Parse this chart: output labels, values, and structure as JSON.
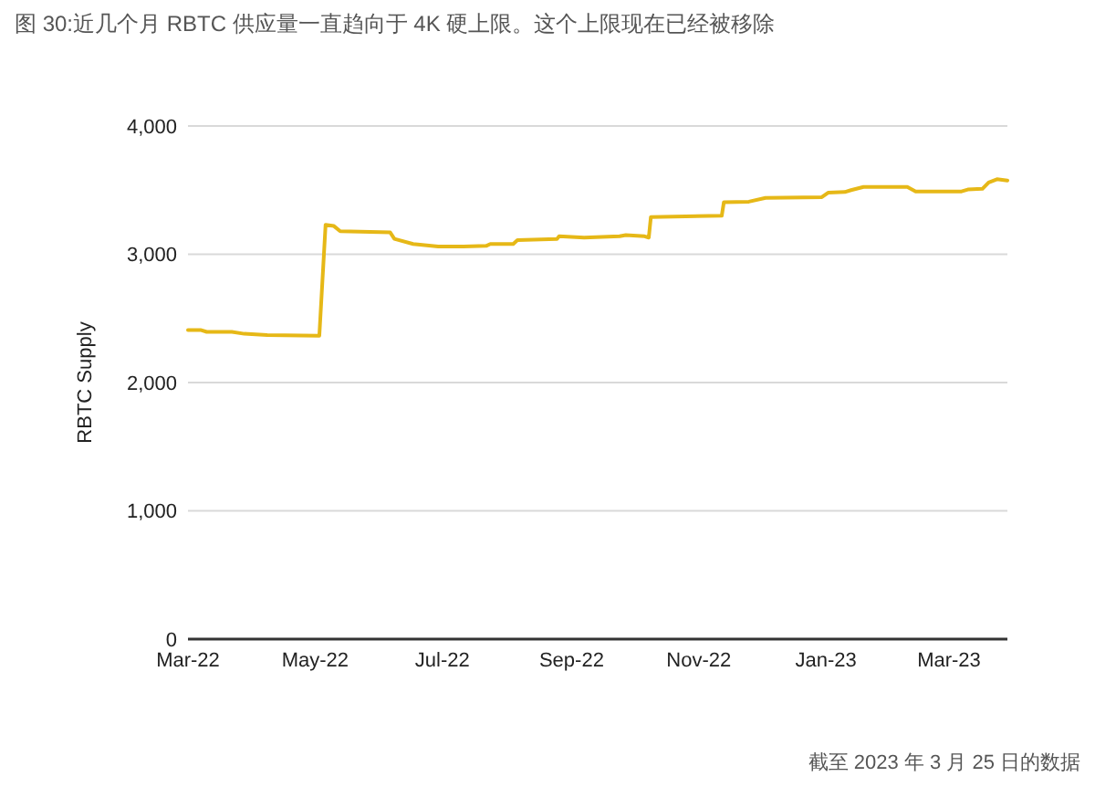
{
  "chart_data": {
    "type": "line",
    "title": "图 30:近几个月 RBTC 供应量一直趋向于 4K 硬上限。这个上限现在已经被移除",
    "ylabel": "RBTC Supply",
    "annotations": [
      "截至 2023 年 3 月 25 日的数据"
    ],
    "x": [
      "2022-03-01",
      "2022-03-07",
      "2022-03-10",
      "2022-03-22",
      "2022-03-28",
      "2022-04-08",
      "2022-05-03",
      "2022-05-06",
      "2022-05-10",
      "2022-05-13",
      "2022-06-06",
      "2022-06-08",
      "2022-06-17",
      "2022-06-29",
      "2022-07-11",
      "2022-07-22",
      "2022-07-24",
      "2022-08-04",
      "2022-08-06",
      "2022-08-25",
      "2022-08-26",
      "2022-09-07",
      "2022-09-24",
      "2022-09-27",
      "2022-10-06",
      "2022-10-08",
      "2022-10-09",
      "2022-11-12",
      "2022-11-13",
      "2022-11-25",
      "2022-12-03",
      "2022-12-30",
      "2023-01-02",
      "2023-01-10",
      "2023-01-13",
      "2023-01-19",
      "2023-02-09",
      "2023-02-13",
      "2023-03-07",
      "2023-03-10",
      "2023-03-17",
      "2023-03-20",
      "2023-03-24",
      "2023-03-29"
    ],
    "series": [
      {
        "color": "#e6b817",
        "values": [
          2410,
          2410,
          2395,
          2395,
          2380,
          2370,
          2365,
          3230,
          3220,
          3180,
          3170,
          3120,
          3080,
          3060,
          3060,
          3065,
          3080,
          3080,
          3110,
          3120,
          3140,
          3130,
          3140,
          3150,
          3140,
          3130,
          3290,
          3300,
          3405,
          3410,
          3440,
          3445,
          3480,
          3485,
          3500,
          3525,
          3525,
          3490,
          3490,
          3505,
          3510,
          3560,
          3585,
          3575
        ]
      }
    ],
    "xlim": [
      "2022-03-01",
      "2023-03-29"
    ],
    "xticks": [
      {
        "value": "2022-03-01",
        "label": "Mar-22"
      },
      {
        "value": "2022-05-01",
        "label": "May-22"
      },
      {
        "value": "2022-07-01",
        "label": "Jul-22"
      },
      {
        "value": "2022-09-01",
        "label": "Sep-22"
      },
      {
        "value": "2022-11-01",
        "label": "Nov-22"
      },
      {
        "value": "2023-01-01",
        "label": "Jan-23"
      },
      {
        "value": "2023-03-01",
        "label": "Mar-23"
      }
    ],
    "ylim": [
      0,
      4000
    ],
    "yticks": [
      {
        "value": 0,
        "label": "0"
      },
      {
        "value": 1000,
        "label": "1,000"
      },
      {
        "value": 2000,
        "label": "2,000"
      },
      {
        "value": 3000,
        "label": "3,000"
      },
      {
        "value": 4000,
        "label": "4,000"
      }
    ],
    "grid": "y",
    "marker": "none",
    "line_style": "solid"
  }
}
